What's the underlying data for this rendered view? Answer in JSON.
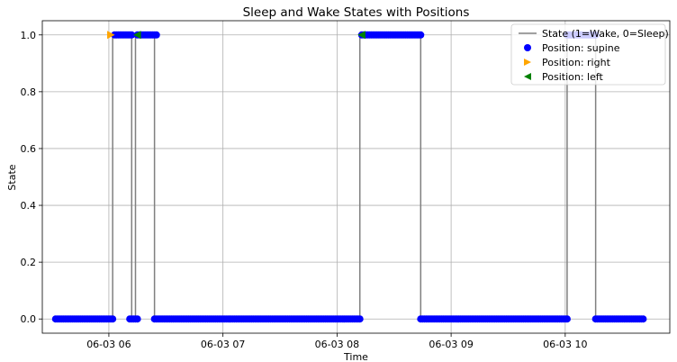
{
  "chart_data": {
    "type": "line",
    "title": "Sleep and Wake States with Positions",
    "xlabel": "Time",
    "ylabel": "State",
    "x_axis": {
      "kind": "time",
      "range": [
        "2024-06-03 05:25",
        "2024-06-03 10:55"
      ],
      "ticks": [
        {
          "t": "2024-06-03 06:00",
          "label": "06-03 06"
        },
        {
          "t": "2024-06-03 07:00",
          "label": "06-03 07"
        },
        {
          "t": "2024-06-03 08:00",
          "label": "06-03 08"
        },
        {
          "t": "2024-06-03 09:00",
          "label": "06-03 09"
        },
        {
          "t": "2024-06-03 10:00",
          "label": "06-03 10"
        }
      ]
    },
    "y_axis": {
      "range": [
        -0.05,
        1.05
      ],
      "ticks": [
        {
          "v": 0.0,
          "label": "0.0"
        },
        {
          "v": 0.2,
          "label": "0.2"
        },
        {
          "v": 0.4,
          "label": "0.4"
        },
        {
          "v": 0.6,
          "label": "0.6"
        },
        {
          "v": 0.8,
          "label": "0.8"
        },
        {
          "v": 1.0,
          "label": "1.0"
        }
      ]
    },
    "grid": true,
    "legend_position": "top-right",
    "state_line": {
      "name": "State (1=Wake, 0=Sleep)",
      "color": "#808080",
      "points": [
        [
          "2024-06-03 05:32",
          0
        ],
        [
          "2024-06-03 06:02",
          0
        ],
        [
          "2024-06-03 06:02",
          1
        ],
        [
          "2024-06-03 06:12",
          1
        ],
        [
          "2024-06-03 06:12",
          0
        ],
        [
          "2024-06-03 06:14",
          0
        ],
        [
          "2024-06-03 06:14",
          1
        ],
        [
          "2024-06-03 06:24",
          1
        ],
        [
          "2024-06-03 06:24",
          0
        ],
        [
          "2024-06-03 08:12",
          0
        ],
        [
          "2024-06-03 08:12",
          1
        ],
        [
          "2024-06-03 08:44",
          1
        ],
        [
          "2024-06-03 08:44",
          0
        ],
        [
          "2024-06-03 10:01",
          0
        ],
        [
          "2024-06-03 10:01",
          1
        ],
        [
          "2024-06-03 10:16",
          1
        ],
        [
          "2024-06-03 10:16",
          0
        ],
        [
          "2024-06-03 10:41",
          0
        ]
      ]
    },
    "position_series": [
      {
        "name": "Position: supine",
        "marker": "circle",
        "color": "#0000ff",
        "segments": [
          {
            "start": "2024-06-03 05:32",
            "end": "2024-06-03 06:02",
            "state": 0
          },
          {
            "start": "2024-06-03 06:03",
            "end": "2024-06-03 06:12",
            "state": 1
          },
          {
            "start": "2024-06-03 06:11",
            "end": "2024-06-03 06:15",
            "state": 0
          },
          {
            "start": "2024-06-03 06:15",
            "end": "2024-06-03 06:25",
            "state": 1
          },
          {
            "start": "2024-06-03 06:24",
            "end": "2024-06-03 08:12",
            "state": 0
          },
          {
            "start": "2024-06-03 08:13",
            "end": "2024-06-03 08:44",
            "state": 1
          },
          {
            "start": "2024-06-03 08:44",
            "end": "2024-06-03 10:01",
            "state": 0
          },
          {
            "start": "2024-06-03 10:01",
            "end": "2024-06-03 10:16",
            "state": 1
          },
          {
            "start": "2024-06-03 10:16",
            "end": "2024-06-03 10:41",
            "state": 0
          }
        ]
      },
      {
        "name": "Position: right",
        "marker": "triangle-right",
        "color": "#ffa500",
        "points": [
          [
            "2024-06-03 06:01",
            1
          ]
        ]
      },
      {
        "name": "Position: left",
        "marker": "triangle-left",
        "color": "#008000",
        "points": [
          [
            "2024-06-03 06:15",
            1
          ],
          [
            "2024-06-03 08:13",
            1
          ]
        ]
      }
    ]
  }
}
